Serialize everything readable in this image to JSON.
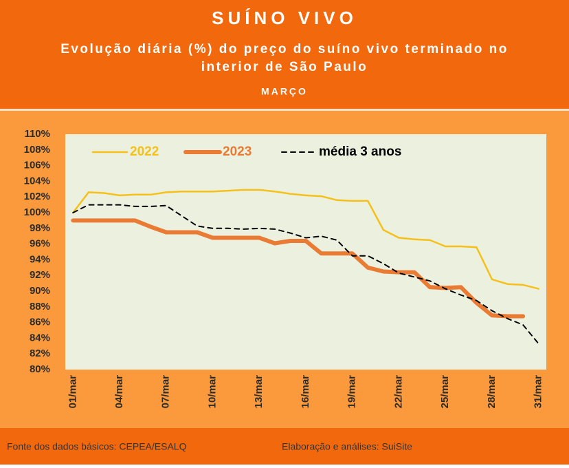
{
  "chart_data": {
    "type": "line",
    "title": "SUÍNO VIVO",
    "subtitle": [
      "Evolução diária (%) do preço do suíno vivo terminado no",
      "interior de São Paulo"
    ],
    "period": "MARÇO",
    "source": "Fonte dos dados básicos: CEPEA/ESALQ",
    "credit": "Elaboração e análises: SuiSite",
    "categories": [
      "01/mar",
      null,
      null,
      "04/mar",
      null,
      null,
      "07/mar",
      null,
      null,
      "10/mar",
      null,
      null,
      "13/mar",
      null,
      null,
      "16/mar",
      null,
      null,
      "19/mar",
      null,
      null,
      "22/mar",
      null,
      null,
      "25/mar",
      null,
      null,
      "28/mar",
      null,
      null,
      "31/mar"
    ],
    "series": [
      {
        "name": "2022",
        "color": "#f5c01a",
        "width": 2.5,
        "dash": false,
        "values": [
          100,
          102.6,
          102.5,
          102.2,
          102.3,
          102.3,
          102.6,
          102.7,
          102.7,
          102.7,
          102.8,
          102.9,
          102.9,
          102.7,
          102.4,
          102.2,
          102.1,
          101.6,
          101.5,
          101.5,
          97.8,
          96.8,
          96.6,
          96.5,
          95.7,
          95.7,
          95.6,
          91.5,
          90.9,
          90.8,
          90.3
        ]
      },
      {
        "name": "2023",
        "color": "#e97b35",
        "width": 6,
        "dash": false,
        "values": [
          99,
          99,
          99,
          99,
          99,
          98.2,
          97.5,
          97.5,
          97.5,
          96.8,
          96.8,
          96.8,
          96.8,
          96.1,
          96.4,
          96.4,
          94.8,
          94.8,
          94.8,
          93.0,
          92.5,
          92.4,
          92.4,
          90.5,
          90.4,
          90.5,
          88.5,
          86.9,
          86.8,
          86.8,
          null
        ]
      },
      {
        "name": "média 3 anos",
        "color": "#000000",
        "width": 2,
        "dash": true,
        "values": [
          100,
          101,
          101,
          101,
          100.8,
          100.8,
          100.9,
          99.6,
          98.3,
          98,
          98,
          97.9,
          98,
          97.9,
          97.4,
          96.8,
          97,
          96.5,
          94.5,
          94.5,
          93.5,
          92.3,
          91.8,
          91.3,
          90.3,
          89.5,
          88.8,
          87.5,
          86.5,
          85.7,
          83.3
        ]
      }
    ],
    "ylim": [
      80,
      110
    ],
    "yticks": [
      {
        "value": 80,
        "label": "80%"
      },
      {
        "value": 82,
        "label": "82%"
      },
      {
        "value": 84,
        "label": "84%"
      },
      {
        "value": 86,
        "label": "86%"
      },
      {
        "value": 88,
        "label": "88%"
      },
      {
        "value": 90,
        "label": "90%"
      },
      {
        "value": 92,
        "label": "92%"
      },
      {
        "value": 94,
        "label": "94%"
      },
      {
        "value": 96,
        "label": "96%"
      },
      {
        "value": 98,
        "label": "98%"
      },
      {
        "value": 100,
        "label": "100%"
      },
      {
        "value": 102,
        "label": "102%"
      },
      {
        "value": 104,
        "label": "104%"
      },
      {
        "value": 106,
        "label": "106%"
      },
      {
        "value": 108,
        "label": "108%"
      },
      {
        "value": 110,
        "label": "110%"
      }
    ],
    "grid": false,
    "legend": "top"
  }
}
